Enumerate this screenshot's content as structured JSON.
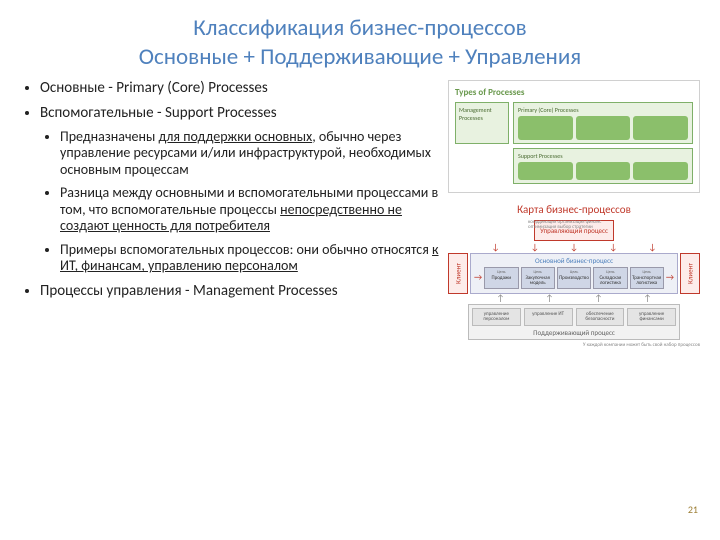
{
  "title_line1": "Классификация бизнес-процессов",
  "title_line2": "Основные + Поддерживающие + Управления",
  "bullets": {
    "b1": "Основные - Primary (Core) Processes",
    "b2": "Вспомогательные - Support Processes",
    "b2_1_pre": "Предназначены ",
    "b2_1_u": "для поддержки основных",
    "b2_1_post": ", обычно через управление ресурсами и/или инфраструктурой, необходимых основным процессам",
    "b2_2_pre": "Разница между основными и вспомогательными процессами в том, что вспомогательные процессы ",
    "b2_2_u": "непосредственно не создают ценность для потребителя",
    "b2_3_pre": "Примеры вспомогательных процессов: они обычно относятся ",
    "b2_3_u": "к ИТ, финансам, управлению персоналом",
    "b3": "Процессы управления - Management Processes"
  },
  "page_number": "21",
  "diagram_top": {
    "title": "Types of Processes",
    "mgmt_label": "Management Processes",
    "core_label": "Primary (Core) Processes",
    "support_label": "Support Processes",
    "core_count": 3,
    "support_count": 3
  },
  "diagram_bot": {
    "title": "Карта бизнес-процессов",
    "upr": "Управляющий процесс",
    "upr_side": "координация организация финанс оптимизация выбор стратегии",
    "client": "Клиент",
    "main_title": "Основной бизнес-процесс",
    "cell_top": "Цель",
    "cells": [
      "Продажи",
      "Закупочная модель",
      "Производство",
      "Складская логистика",
      "Транспортная логистика"
    ],
    "support_title": "Поддерживающий процесс",
    "support_cells": [
      "управление персоналом",
      "управление ИТ",
      "обеспечение безопасности",
      "управление финансами"
    ],
    "footnote": "У каждой компании может быть свой набор процессов"
  },
  "colors": {
    "title": "#4f81bd",
    "accent_red": "#c0392b",
    "green_box": "#8bbf6b",
    "green_border": "#7fb069"
  }
}
